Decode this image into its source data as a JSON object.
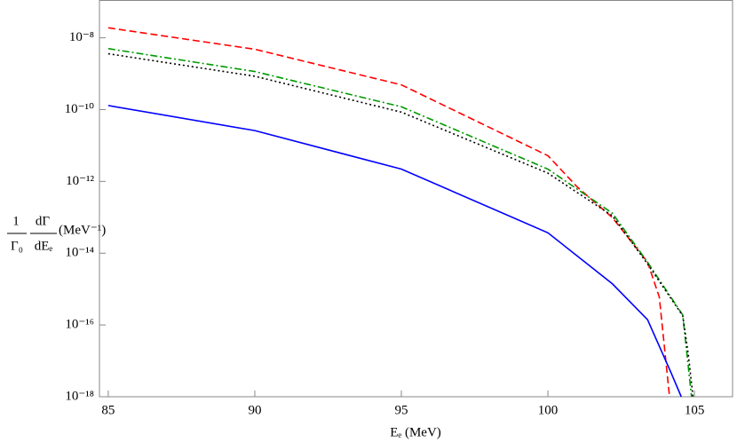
{
  "chart_data": {
    "type": "line",
    "xlabel": "Eₑ (MeV)",
    "ylabel": [
      "1",
      "Γ₀",
      "dΓ",
      "dEₑ",
      "(MeV⁻¹)"
    ],
    "log_y": true,
    "xlim": [
      84.7,
      106.3
    ],
    "xticks": [
      85,
      90,
      95,
      100,
      105
    ],
    "ylim": [
      1e-18,
      1.1e-07
    ],
    "yticks": [
      {
        "value": 1e-18,
        "label": "10⁻¹⁸"
      },
      {
        "value": 1e-16,
        "label": "10⁻¹⁶"
      },
      {
        "value": 1e-14,
        "label": "10⁻¹⁴"
      },
      {
        "value": 1e-12,
        "label": "10⁻¹²"
      },
      {
        "value": 1e-10,
        "label": "10⁻¹⁰"
      },
      {
        "value": 1e-08,
        "label": "10⁻⁸"
      }
    ],
    "series": [
      {
        "color": "#ff0000",
        "style": "dashed",
        "x": [
          85,
          90,
          95,
          100,
          101,
          102.2,
          103.4,
          103.8,
          104.15
        ],
        "values": [
          1.9e-08,
          4.8e-09,
          4.9e-10,
          5.2e-12,
          7e-13,
          9.8e-14,
          5.6e-15,
          6e-16,
          1e-18
        ]
      },
      {
        "color": "#009900",
        "style": "dashdot",
        "x": [
          85,
          90,
          95,
          100,
          102.2,
          103.4,
          104.6,
          104.75,
          104.9
        ],
        "values": [
          5e-09,
          1.15e-09,
          1.2e-10,
          2.2e-12,
          1.3e-13,
          5.6e-15,
          1.9e-16,
          1.4e-17,
          1e-18
        ]
      },
      {
        "color": "#000000",
        "style": "dotted",
        "x": [
          85,
          90,
          95,
          100,
          102.2,
          103.4,
          104.6,
          104.8,
          104.95
        ],
        "values": [
          3.6e-09,
          8.5e-10,
          8.5e-11,
          1.7e-12,
          1.1e-13,
          5e-15,
          1.8e-16,
          1.3e-17,
          1e-18
        ]
      },
      {
        "color": "#0000ff",
        "style": "solid",
        "x": [
          85,
          90,
          95,
          100,
          102.2,
          103.4,
          104.2,
          104.55
        ],
        "values": [
          1.3e-10,
          2.6e-11,
          2.2e-12,
          3.7e-14,
          1.4e-15,
          1.4e-16,
          4.7e-18,
          1e-18
        ]
      }
    ]
  }
}
